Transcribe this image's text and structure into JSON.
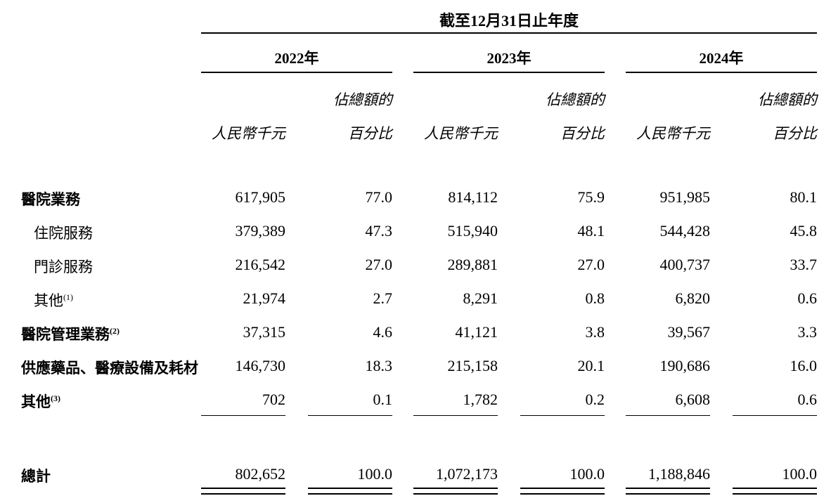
{
  "header": {
    "period": "截至12月31日止年度",
    "years": [
      "2022年",
      "2023年",
      "2024年"
    ],
    "col_amount": "人民幣千元",
    "col_pct_line1": "佔總額的",
    "col_pct_line2": "百分比"
  },
  "rows": [
    {
      "label": "醫院業務",
      "note": "",
      "bold": true,
      "indent": false,
      "values": [
        "617,905",
        "77.0",
        "814,112",
        "75.9",
        "951,985",
        "80.1"
      ]
    },
    {
      "label": "住院服務",
      "note": "",
      "bold": false,
      "indent": true,
      "values": [
        "379,389",
        "47.3",
        "515,940",
        "48.1",
        "544,428",
        "45.8"
      ]
    },
    {
      "label": "門診服務",
      "note": "",
      "bold": false,
      "indent": true,
      "values": [
        "216,542",
        "27.0",
        "289,881",
        "27.0",
        "400,737",
        "33.7"
      ]
    },
    {
      "label": "其他",
      "note": "(1)",
      "bold": false,
      "indent": true,
      "values": [
        "21,974",
        "2.7",
        "8,291",
        "0.8",
        "6,820",
        "0.6"
      ]
    },
    {
      "label": "醫院管理業務",
      "note": "(2)",
      "bold": true,
      "indent": false,
      "values": [
        "37,315",
        "4.6",
        "41,121",
        "3.8",
        "39,567",
        "3.3"
      ]
    },
    {
      "label": "供應藥品、醫療設備及耗材",
      "note": "",
      "bold": true,
      "indent": false,
      "values": [
        "146,730",
        "18.3",
        "215,158",
        "20.1",
        "190,686",
        "16.0"
      ]
    },
    {
      "label": "其他",
      "note": "(3)",
      "bold": true,
      "indent": false,
      "values": [
        "702",
        "0.1",
        "1,782",
        "0.2",
        "6,608",
        "0.6"
      ]
    }
  ],
  "total": {
    "label": "總計",
    "values": [
      "802,652",
      "100.0",
      "1,072,173",
      "100.0",
      "1,188,846",
      "100.0"
    ]
  }
}
